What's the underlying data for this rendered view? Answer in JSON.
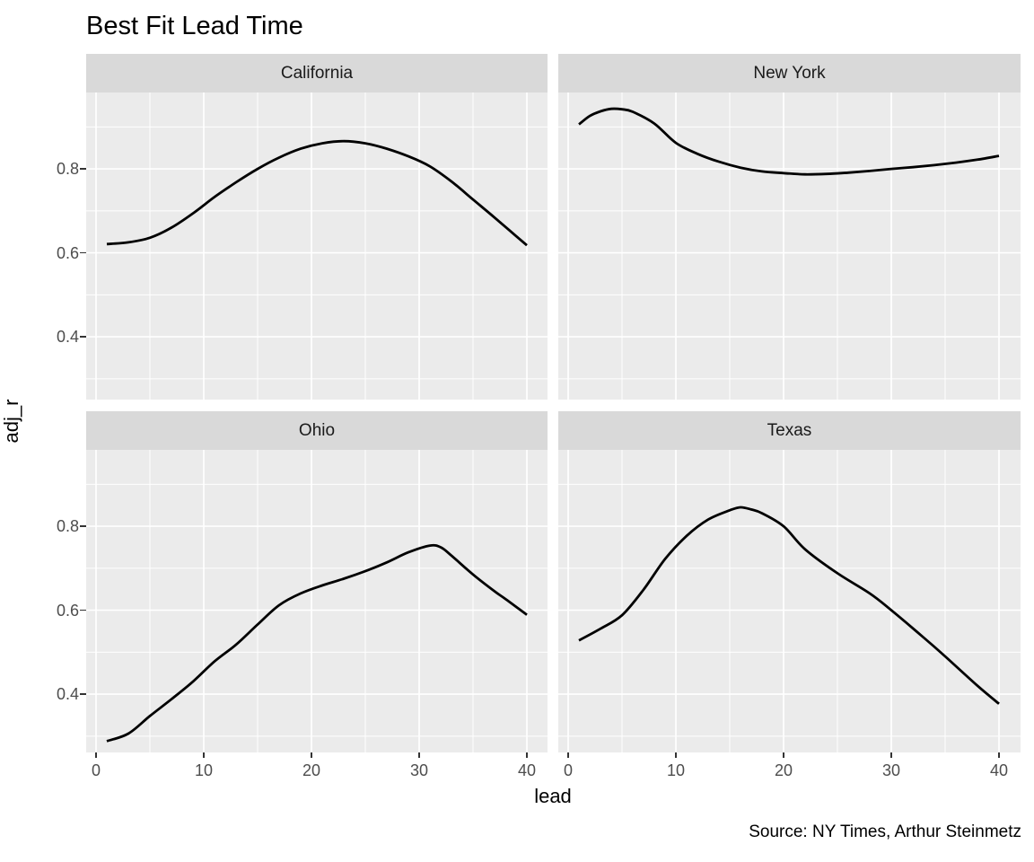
{
  "title": "Best Fit Lead Time",
  "caption": "Source: NY Times, Arthur Steinmetz",
  "x_axis": {
    "label": "lead",
    "tick_labels": [
      "0",
      "10",
      "20",
      "30",
      "40"
    ]
  },
  "y_axis": {
    "label": "adj_r",
    "tick_labels": [
      "0.8",
      "0.6",
      "0.4"
    ]
  },
  "chart_data": {
    "type": "line",
    "title": "Best Fit Lead Time",
    "xlabel": "lead",
    "ylabel": "adj_r",
    "caption": "Source: NY Times, Arthur Steinmetz",
    "grid": true,
    "legend": "none",
    "x_ticks": [
      0,
      10,
      20,
      30,
      40
    ],
    "x_minor_ticks": [
      5,
      15,
      25,
      35
    ],
    "y_ticks": [
      0.8,
      0.6,
      0.4
    ],
    "y_minor_ticks": [
      0.9,
      0.7,
      0.5,
      0.3
    ],
    "xlim": [
      -1,
      42
    ],
    "ylim": [
      0.255,
      0.982
    ],
    "colors": {
      "panel_bg": "#EBEBEB",
      "strip_bg": "#D9D9D9",
      "grid": "#FFFFFF",
      "line": "#000000",
      "tick_text": "#4D4D4D",
      "text": "#000000"
    },
    "facets": [
      {
        "name": "California",
        "points": [
          [
            1,
            0.621
          ],
          [
            3,
            0.625
          ],
          [
            5,
            0.636
          ],
          [
            7,
            0.66
          ],
          [
            9,
            0.694
          ],
          [
            11,
            0.733
          ],
          [
            13,
            0.768
          ],
          [
            15,
            0.8
          ],
          [
            17,
            0.827
          ],
          [
            19,
            0.848
          ],
          [
            21,
            0.861
          ],
          [
            23,
            0.866
          ],
          [
            25,
            0.861
          ],
          [
            27,
            0.848
          ],
          [
            29,
            0.83
          ],
          [
            31,
            0.806
          ],
          [
            33,
            0.77
          ],
          [
            35,
            0.727
          ],
          [
            37,
            0.684
          ],
          [
            39,
            0.64
          ],
          [
            40,
            0.618
          ]
        ]
      },
      {
        "name": "New York",
        "points": [
          [
            1,
            0.906
          ],
          [
            2,
            0.926
          ],
          [
            3,
            0.937
          ],
          [
            4,
            0.943
          ],
          [
            5,
            0.942
          ],
          [
            6,
            0.936
          ],
          [
            8,
            0.908
          ],
          [
            10,
            0.862
          ],
          [
            12,
            0.836
          ],
          [
            14,
            0.817
          ],
          [
            16,
            0.803
          ],
          [
            18,
            0.794
          ],
          [
            20,
            0.79
          ],
          [
            22,
            0.787
          ],
          [
            24,
            0.788
          ],
          [
            26,
            0.791
          ],
          [
            28,
            0.795
          ],
          [
            30,
            0.8
          ],
          [
            32,
            0.804
          ],
          [
            34,
            0.809
          ],
          [
            36,
            0.815
          ],
          [
            38,
            0.822
          ],
          [
            40,
            0.831
          ]
        ]
      },
      {
        "name": "Ohio",
        "points": [
          [
            1,
            0.288
          ],
          [
            3,
            0.306
          ],
          [
            5,
            0.348
          ],
          [
            7,
            0.388
          ],
          [
            9,
            0.43
          ],
          [
            11,
            0.478
          ],
          [
            13,
            0.518
          ],
          [
            15,
            0.566
          ],
          [
            17,
            0.612
          ],
          [
            19,
            0.64
          ],
          [
            21,
            0.659
          ],
          [
            23,
            0.675
          ],
          [
            25,
            0.693
          ],
          [
            27,
            0.714
          ],
          [
            29,
            0.738
          ],
          [
            31,
            0.754
          ],
          [
            32,
            0.75
          ],
          [
            33,
            0.73
          ],
          [
            35,
            0.685
          ],
          [
            37,
            0.645
          ],
          [
            38,
            0.627
          ],
          [
            40,
            0.589
          ]
        ]
      },
      {
        "name": "Texas",
        "points": [
          [
            1,
            0.528
          ],
          [
            3,
            0.556
          ],
          [
            5,
            0.588
          ],
          [
            7,
            0.649
          ],
          [
            9,
            0.722
          ],
          [
            11,
            0.777
          ],
          [
            13,
            0.816
          ],
          [
            15,
            0.838
          ],
          [
            16,
            0.845
          ],
          [
            17,
            0.84
          ],
          [
            18,
            0.831
          ],
          [
            20,
            0.8
          ],
          [
            22,
            0.745
          ],
          [
            25,
            0.688
          ],
          [
            28,
            0.64
          ],
          [
            30,
            0.6
          ],
          [
            33,
            0.535
          ],
          [
            35,
            0.49
          ],
          [
            38,
            0.42
          ],
          [
            40,
            0.377
          ]
        ]
      }
    ]
  }
}
